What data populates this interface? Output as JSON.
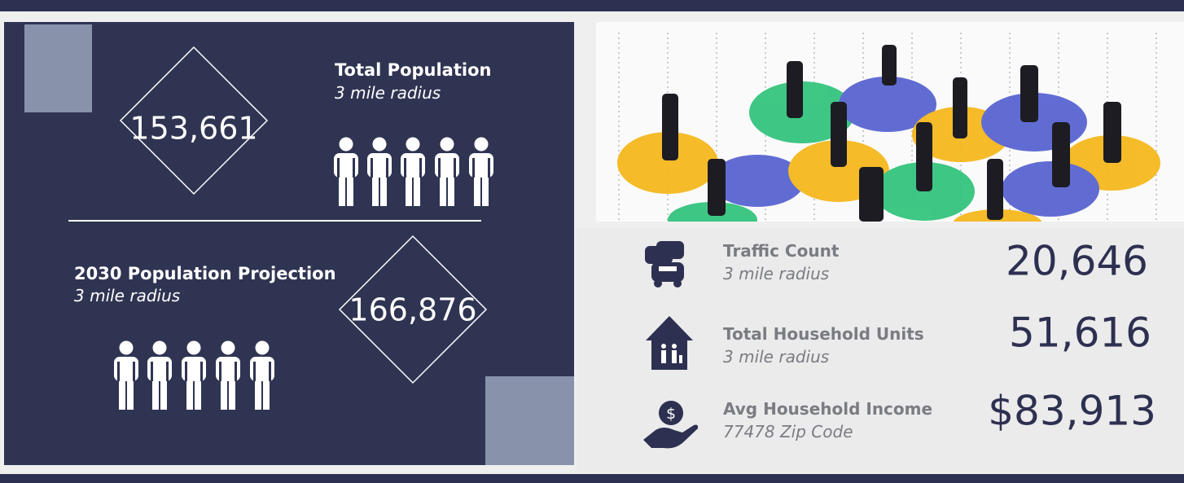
{
  "population": {
    "label": "Total Population",
    "sublabel": "3 mile radius",
    "value": "153,661"
  },
  "projection": {
    "label": "2030 Population Projection",
    "sublabel": "3 mile radius",
    "value": "166,876"
  },
  "stats": [
    {
      "label": "Traffic Count",
      "sublabel": "3 mile radius",
      "value": "20,646"
    },
    {
      "label": "Total Household Units",
      "sublabel": "3 mile radius",
      "value": "51,616"
    },
    {
      "label": "Avg Household Income",
      "sublabel": "77478 Zip Code",
      "value": "$83,913"
    }
  ]
}
